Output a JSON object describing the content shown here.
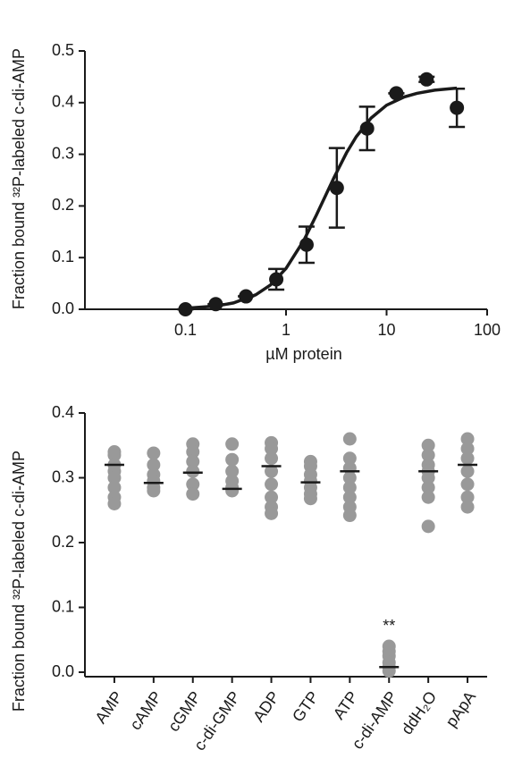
{
  "chart_data": [
    {
      "type": "scatter",
      "y_label": "Fraction bound ³²P-labeled c-di-AMP",
      "x_label": "µM protein",
      "x": [
        0.1,
        0.2,
        0.4,
        0.8,
        1.6,
        3.2,
        6.4,
        12.5,
        25,
        50
      ],
      "values": [
        0.0,
        0.01,
        0.025,
        0.058,
        0.125,
        0.235,
        0.35,
        0.418,
        0.445,
        0.39
      ],
      "errors": [
        0,
        0,
        0,
        0.02,
        0.035,
        0.077,
        0.042,
        0,
        0.005,
        0.037
      ],
      "fit": {
        "x": [
          0.1,
          0.2,
          0.3,
          0.5,
          0.7,
          1,
          1.5,
          2,
          3,
          4,
          5,
          7,
          10,
          15,
          20,
          30,
          50
        ],
        "values": [
          0.0019,
          0.0062,
          0.0122,
          0.028,
          0.047,
          0.079,
          0.133,
          0.182,
          0.255,
          0.303,
          0.334,
          0.37,
          0.395,
          0.411,
          0.418,
          0.424,
          0.428
        ]
      },
      "color": "#1a1a1a",
      "log_x": true,
      "xlim": [
        0.01,
        100
      ],
      "xticks": [
        0.1,
        1,
        10,
        100
      ],
      "ylim": [
        0,
        0.5
      ],
      "yticks": [
        {
          "value": 0,
          "label": "0.0"
        },
        0.1,
        0.2,
        0.3,
        0.4,
        0.5
      ]
    },
    {
      "type": "dot",
      "y_label": "Fraction bound ³²P-labeled c-di-AMP",
      "categories": [
        "AMP",
        "cAMP",
        "cGMP",
        "c-di-GMP",
        "ADP",
        "GTP",
        "ATP",
        "c-di-AMP",
        "ddH₂O",
        "pApA"
      ],
      "values": [
        [
          0.34,
          0.335,
          0.32,
          0.31,
          0.3,
          0.285,
          0.27,
          0.26
        ],
        [
          0.338,
          0.32,
          0.305,
          0.295,
          0.285,
          0.28
        ],
        [
          0.352,
          0.34,
          0.325,
          0.31,
          0.29,
          0.275
        ],
        [
          0.352,
          0.328,
          0.31,
          0.295,
          0.285,
          0.28
        ],
        [
          0.354,
          0.345,
          0.33,
          0.31,
          0.29,
          0.27,
          0.255,
          0.245
        ],
        [
          0.325,
          0.318,
          0.305,
          0.295,
          0.285,
          0.275,
          0.268
        ],
        [
          0.36,
          0.33,
          0.315,
          0.3,
          0.285,
          0.27,
          0.255,
          0.242
        ],
        [
          0.04,
          0.032,
          0.025,
          0.015,
          0.008,
          0.002
        ],
        [
          0.35,
          0.335,
          0.32,
          0.31,
          0.3,
          0.285,
          0.27,
          0.225
        ],
        [
          0.36,
          0.345,
          0.33,
          0.31,
          0.29,
          0.27,
          0.255
        ]
      ],
      "means": [
        0.32,
        0.292,
        0.308,
        0.283,
        0.318,
        0.293,
        0.31,
        0.008,
        0.31,
        0.32
      ],
      "color": "#999999",
      "annotations": [
        {
          "text": "**",
          "category": "c-di-AMP"
        }
      ],
      "ylim": [
        0,
        0.4
      ],
      "yticks": [
        {
          "value": 0,
          "label": "0.0"
        },
        0.1,
        0.2,
        0.3,
        0.4
      ]
    }
  ]
}
